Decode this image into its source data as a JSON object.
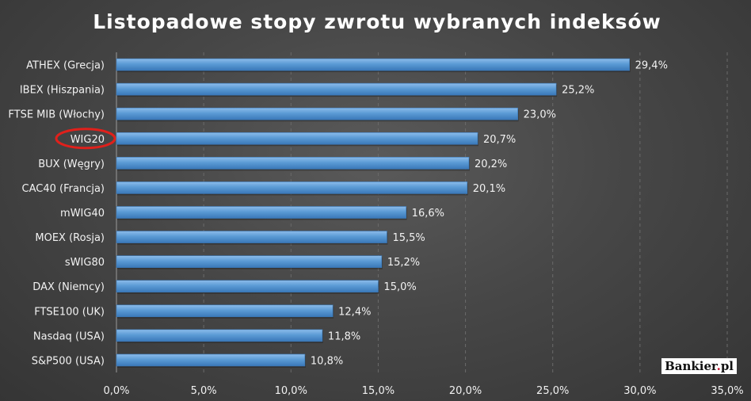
{
  "chart_data": {
    "type": "bar",
    "orientation": "horizontal",
    "title": "Listopadowe stopy zwrotu wybranych indeksów",
    "categories": [
      "ATHEX (Grecja)",
      "IBEX (Hiszpania)",
      "FTSE MIB (Włochy)",
      "WIG20",
      "BUX (Węgry)",
      "CAC40 (Francja)",
      "mWIG40",
      "MOEX (Rosja)",
      "sWIG80",
      "DAX (Niemcy)",
      "FTSE100 (UK)",
      "Nasdaq (USA)",
      "S&P500 (USA)"
    ],
    "values": [
      29.4,
      25.2,
      23.0,
      20.7,
      20.2,
      20.1,
      16.6,
      15.5,
      15.2,
      15.0,
      12.4,
      11.8,
      10.8
    ],
    "value_labels": [
      "29,4%",
      "25,2%",
      "23,0%",
      "20,7%",
      "20,2%",
      "20,1%",
      "16,6%",
      "15,5%",
      "15,2%",
      "15,0%",
      "12,4%",
      "11,8%",
      "10,8%"
    ],
    "xlim": [
      0,
      35
    ],
    "x_ticks": [
      0,
      5,
      10,
      15,
      20,
      25,
      30,
      35
    ],
    "x_tick_labels": [
      "0,0%",
      "5,0%",
      "10,0%",
      "15,0%",
      "20,0%",
      "25,0%",
      "30,0%",
      "35,0%"
    ],
    "highlighted_category": "WIG20",
    "grid": true,
    "colors": {
      "bar": "#5b9bd5",
      "bar_dark": "#3a78b8",
      "highlight_circle": "#e0201b",
      "background": "#474747",
      "text": "#f2f2f2"
    }
  },
  "logo": {
    "text": "Bankier",
    "dot": ".",
    "suffix": "pl"
  }
}
